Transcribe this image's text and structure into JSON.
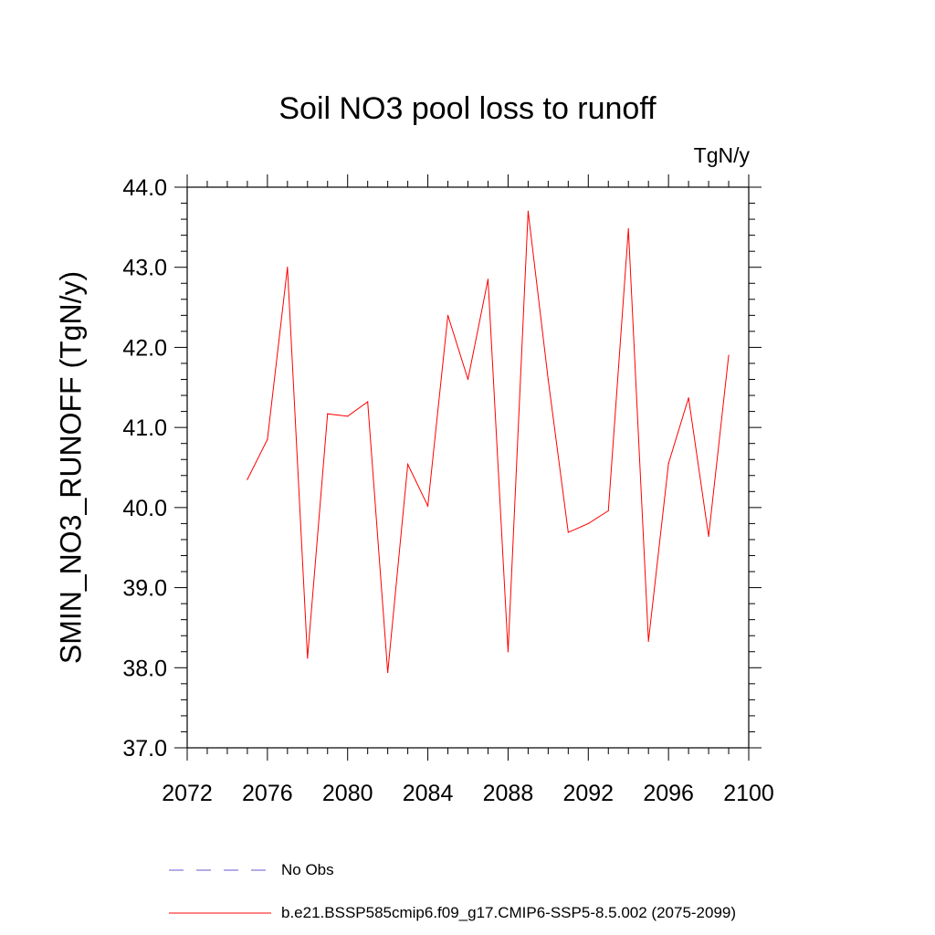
{
  "chart_data": {
    "type": "line",
    "title": "Soil NO3 pool loss to runoff",
    "units": "TgN/y",
    "ylabel": "SMIN_NO3_RUNOFF  (TgN/y)",
    "xlim": [
      2072,
      2100
    ],
    "ylim": [
      37.0,
      44.0
    ],
    "x_ticks": [
      2072,
      2076,
      2080,
      2084,
      2088,
      2092,
      2096,
      2100
    ],
    "x_tick_labels": [
      "2072",
      "2076",
      "2080",
      "2084",
      "2088",
      "2092",
      "2096",
      "2100"
    ],
    "y_ticks": [
      37.0,
      38.0,
      39.0,
      40.0,
      41.0,
      42.0,
      43.0,
      44.0
    ],
    "y_tick_labels": [
      "37.0",
      "38.0",
      "39.0",
      "40.0",
      "41.0",
      "42.0",
      "43.0",
      "44.0"
    ],
    "series": [
      {
        "name": "b.e21.BSSP585cmip6.f09_g17.CMIP6-SSP5-8.5.002 (2075-2099)",
        "color": "#ff0000",
        "style": "solid",
        "x": [
          2075,
          2076,
          2077,
          2078,
          2079,
          2080,
          2081,
          2082,
          2083,
          2084,
          2085,
          2086,
          2087,
          2088,
          2089,
          2090,
          2091,
          2092,
          2093,
          2094,
          2095,
          2096,
          2097,
          2098,
          2099
        ],
        "y": [
          40.35,
          40.85,
          43.0,
          38.12,
          41.17,
          41.14,
          41.32,
          37.94,
          40.54,
          40.02,
          42.4,
          41.6,
          42.85,
          38.2,
          43.7,
          41.6,
          39.69,
          39.8,
          39.96,
          43.48,
          38.33,
          40.55,
          41.37,
          39.64,
          41.9
        ]
      }
    ],
    "legend": [
      {
        "label": "No Obs",
        "color": "#6a5acd",
        "style": "dashed"
      },
      {
        "label": "b.e21.BSSP585cmip6.f09_g17.CMIP6-SSP5-8.5.002 (2075-2099)",
        "color": "#ff0000",
        "style": "solid"
      }
    ]
  }
}
